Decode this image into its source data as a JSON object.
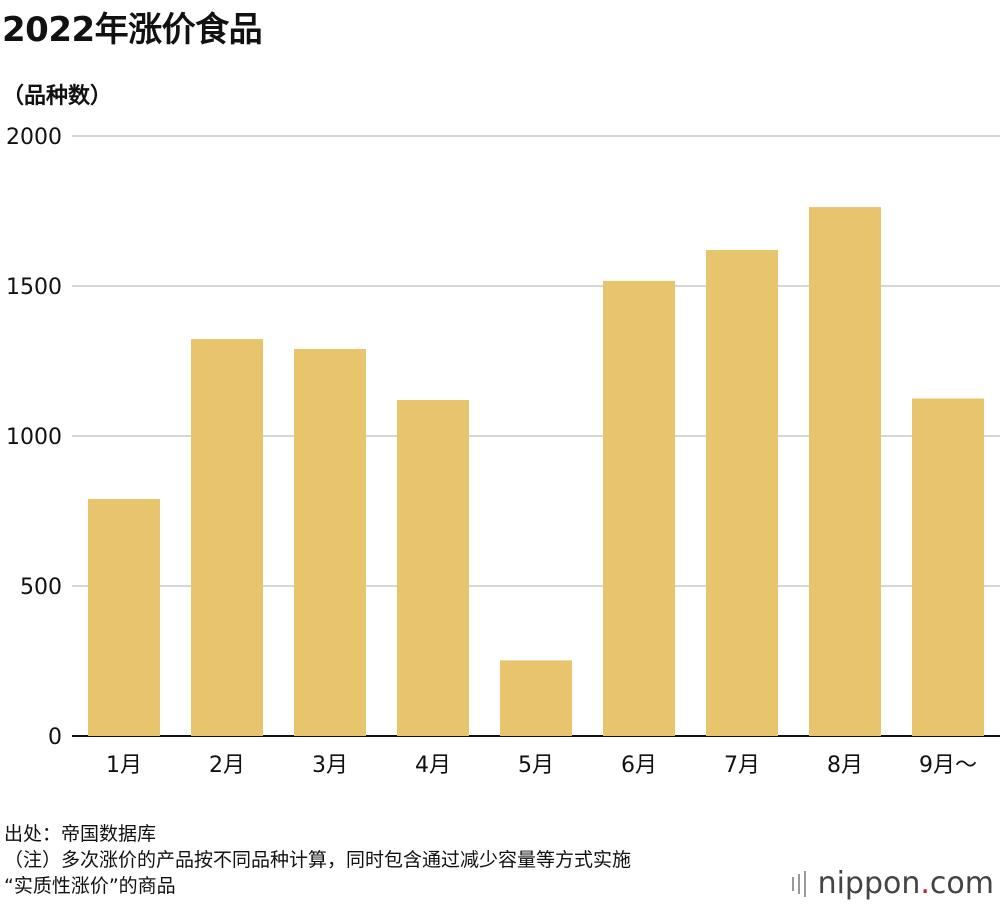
{
  "title": "2022年涨价食品",
  "y_unit": "（品种数）",
  "notes": {
    "source": "出处：帝国数据库",
    "note1": "（注）多次涨价的产品按不同品种计算，同时包含通过减少容量等方式实施",
    "note2": "“实质性涨价”的商品"
  },
  "logo": {
    "text_pre": "nippon",
    "dot": ".",
    "text_post": "com"
  },
  "chart_data": {
    "type": "bar",
    "title": "2022年涨价食品",
    "ylabel": "（品种数）",
    "xlabel": "",
    "categories": [
      "1月",
      "2月",
      "3月",
      "4月",
      "5月",
      "6月",
      "7月",
      "8月",
      "9月～"
    ],
    "values": [
      790,
      1323,
      1290,
      1120,
      252,
      1517,
      1620,
      1763,
      1125
    ],
    "ylim": [
      0,
      2000
    ],
    "yticks": [
      0,
      500,
      1000,
      1500,
      2000
    ],
    "grid": true,
    "bar_color": "#e8c46c",
    "grid_color": "#c8c8c8"
  }
}
